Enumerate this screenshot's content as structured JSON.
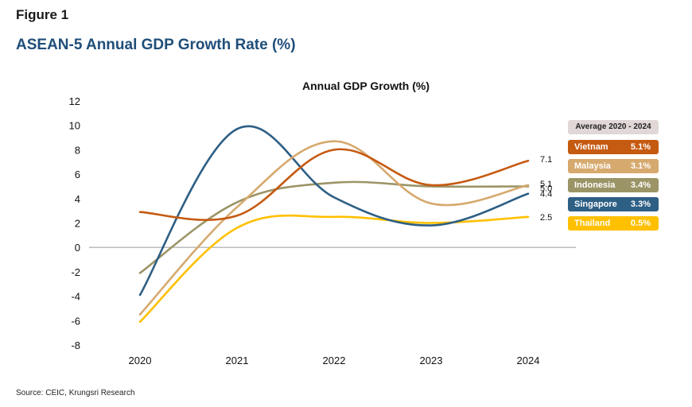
{
  "figure_label": "Figure 1",
  "figure_title": "ASEAN-5 Annual GDP Growth Rate (%)",
  "source": "Source: CEIC, Krungsri Research",
  "legend": {
    "header": "Average 2020 - 2024",
    "items": [
      {
        "name": "Vietnam",
        "avg": "5.1%",
        "color": "#c55a11"
      },
      {
        "name": "Malaysia",
        "avg": "3.1%",
        "color": "#d6a96e"
      },
      {
        "name": "Indonesia",
        "avg": "3.4%",
        "color": "#9b9466"
      },
      {
        "name": "Singapore",
        "avg": "3.3%",
        "color": "#2e5f85"
      },
      {
        "name": "Thailand",
        "avg": "0.5%",
        "color": "#ffc000"
      }
    ]
  },
  "chart_data": {
    "type": "line",
    "title": "Annual GDP Growth (%)",
    "categories": [
      "2020",
      "2021",
      "2022",
      "2023",
      "2024"
    ],
    "ylim": [
      -8,
      12
    ],
    "yticks": [
      12,
      10,
      8,
      6,
      4,
      2,
      0,
      -2,
      -4,
      -6,
      -8
    ],
    "series": [
      {
        "name": "Vietnam",
        "color": "#c55a11",
        "values": [
          2.9,
          2.6,
          8.0,
          5.1,
          7.1
        ],
        "end_label": "7.1"
      },
      {
        "name": "Malaysia",
        "color": "#d6a96e",
        "values": [
          -5.5,
          3.3,
          8.7,
          3.6,
          5.1
        ],
        "end_label": "5.1"
      },
      {
        "name": "Indonesia",
        "color": "#9b9466",
        "values": [
          -2.1,
          3.7,
          5.3,
          5.0,
          5.0
        ],
        "end_label": "5.0"
      },
      {
        "name": "Singapore",
        "color": "#2e5f85",
        "values": [
          -3.9,
          9.7,
          4.1,
          1.8,
          4.4
        ],
        "end_label": "4.4"
      },
      {
        "name": "Thailand",
        "color": "#ffc000",
        "values": [
          -6.1,
          1.6,
          2.5,
          2.0,
          2.5
        ],
        "end_label": "2.5"
      }
    ]
  }
}
